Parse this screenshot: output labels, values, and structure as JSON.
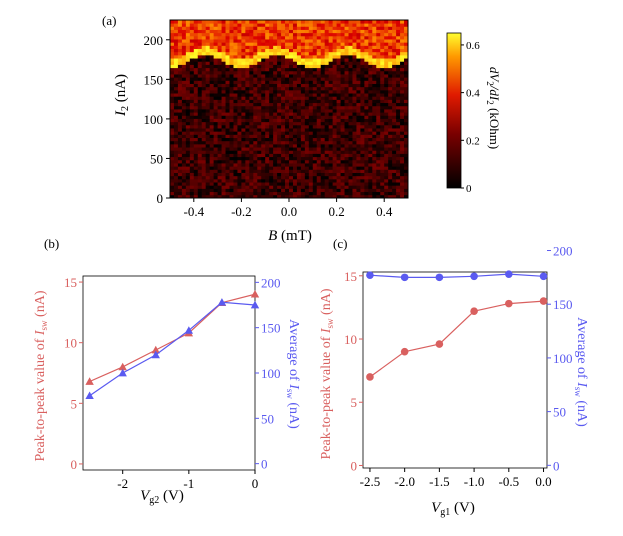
{
  "colors": {
    "left_series": "#d9605f",
    "right_series": "#5a5af0",
    "axis": "#000000",
    "heatmap_low": "#000000",
    "heatmap_mid": "#cc0000",
    "heatmap_high": "#ffff00"
  },
  "chart_data": [
    {
      "panel_label": "(a)",
      "type": "heatmap",
      "xlabel": "B (mT)",
      "ylabel": "I2 (nA)",
      "xlim": [
        -0.5,
        0.5
      ],
      "ylim": [
        0,
        225
      ],
      "x_ticks": [
        -0.4,
        -0.2,
        0.0,
        0.2,
        0.4
      ],
      "x_tick_labels": [
        "-0.4",
        "-0.2",
        "0.0",
        "0.2",
        "0.4"
      ],
      "y_ticks": [
        0,
        50,
        100,
        150,
        200
      ],
      "y_tick_labels": [
        "0",
        "50",
        "100",
        "150",
        "200"
      ],
      "colorbar": {
        "label": "dV2/dI2 (kOhm)",
        "range": [
          0,
          0.65
        ],
        "ticks": [
          0,
          0.2,
          0.4,
          0.6
        ],
        "tick_labels": [
          "0",
          "0.2",
          "0.4",
          "0.6"
        ]
      },
      "switching_current": {
        "description": "Bright switching edge modulated with B",
        "mean_nA": 176,
        "amplitude_nA": 8,
        "period_mT": 0.3
      }
    },
    {
      "panel_label": "(b)",
      "type": "line",
      "xlabel": "Vg2 (V)",
      "ylabel_left": "Peak-to-peak value of Isw (nA)",
      "ylabel_right": "Average of Isw (nA)",
      "xlim": [
        -2.6,
        0
      ],
      "ylim_left": [
        -0.5,
        15.5
      ],
      "ylim_right": [
        -7,
        207
      ],
      "x_ticks": [
        -2,
        -1,
        0
      ],
      "x_tick_labels": [
        "-2",
        "-1",
        "0"
      ],
      "y_ticks_left": [
        0,
        5,
        10,
        15
      ],
      "y_tick_labels_left": [
        "0",
        "5",
        "10",
        "15"
      ],
      "y_ticks_right": [
        0,
        50,
        100,
        150,
        200
      ],
      "y_tick_labels_right": [
        "0",
        "50",
        "100",
        "150",
        "200"
      ],
      "series": [
        {
          "axis": "left",
          "marker": "triangle",
          "x": [
            -2.5,
            -2.0,
            -1.5,
            -1.0,
            -0.5,
            0.0
          ],
          "values": [
            6.8,
            8.0,
            9.4,
            10.8,
            13.3,
            14.0
          ]
        },
        {
          "axis": "right",
          "marker": "triangle",
          "x": [
            -2.5,
            -2.0,
            -1.5,
            -1.0,
            -0.5,
            0.0
          ],
          "values": [
            75,
            100,
            120,
            147,
            178,
            175
          ]
        }
      ]
    },
    {
      "panel_label": "(c)",
      "type": "line",
      "xlabel": "Vg1 (V)",
      "ylabel_left": "Peak-to-peak value of Isw (nA)",
      "ylabel_right": "Average of Isw (nA)",
      "xlim": [
        -2.6,
        0.05
      ],
      "ylim_left": [
        -0.2,
        15.3
      ],
      "ylim_right": [
        -2.5,
        180
      ],
      "x_ticks": [
        -2.5,
        -2.0,
        -1.5,
        -1.0,
        -0.5,
        0.0
      ],
      "x_tick_labels": [
        "-2.5",
        "-2.0",
        "-1.5",
        "-1.0",
        "-0.5",
        "0.0"
      ],
      "y_ticks_left": [
        0,
        5,
        10,
        15
      ],
      "y_tick_labels_left": [
        "0",
        "5",
        "10",
        "15"
      ],
      "y_ticks_right": [
        0,
        50,
        100,
        150,
        200
      ],
      "y_tick_labels_right": [
        "0",
        "50",
        "100",
        "150",
        "200"
      ],
      "series": [
        {
          "axis": "left",
          "marker": "circle",
          "x": [
            -2.5,
            -2.0,
            -1.5,
            -1.0,
            -0.5,
            0.0
          ],
          "values": [
            7.0,
            9.0,
            9.6,
            12.2,
            12.8,
            13.0
          ]
        },
        {
          "axis": "right",
          "marker": "circle",
          "x": [
            -2.5,
            -2.0,
            -1.5,
            -1.0,
            -0.5,
            0.0
          ],
          "values": [
            177,
            175,
            175,
            176,
            178,
            176
          ]
        }
      ]
    }
  ]
}
